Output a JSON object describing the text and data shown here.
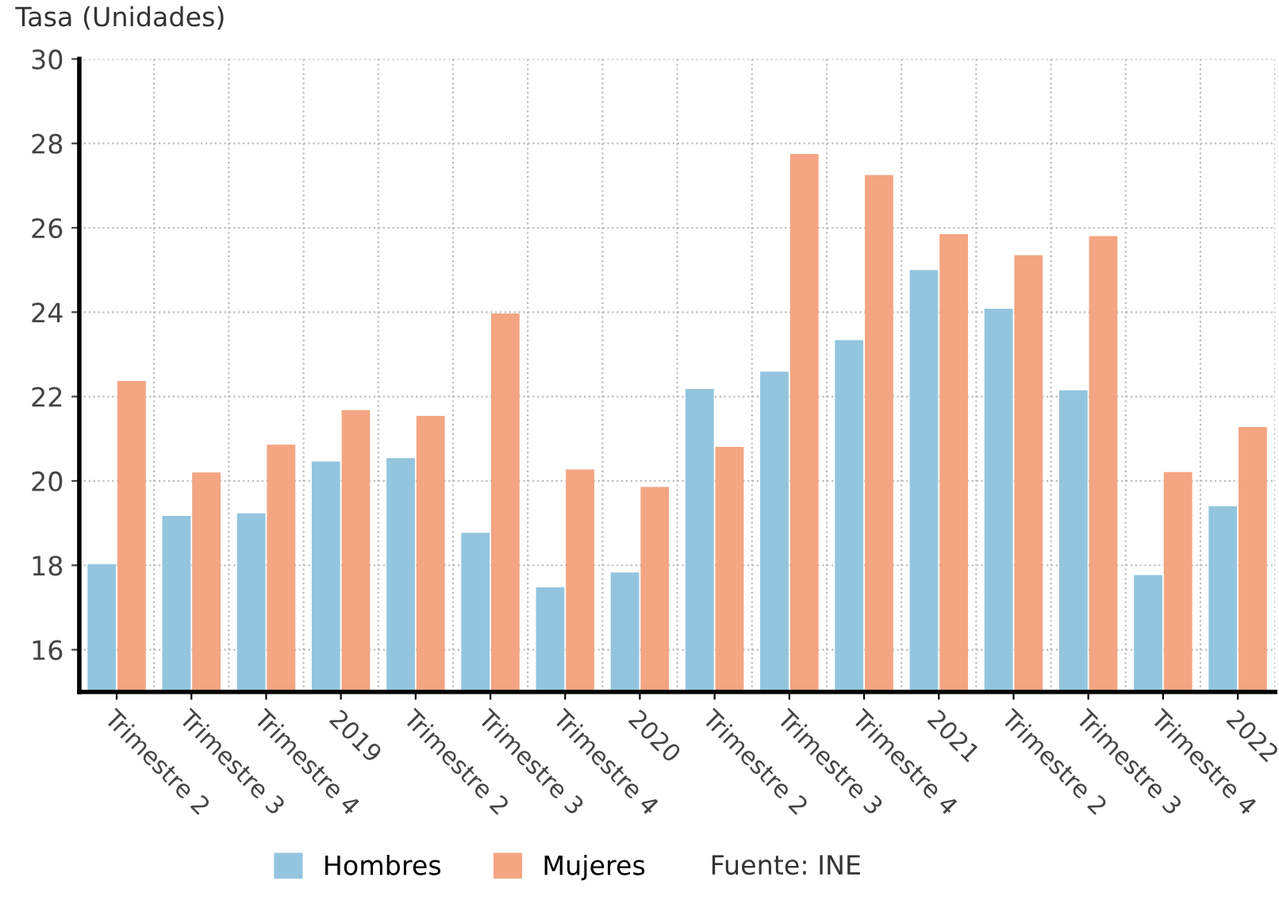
{
  "chart_data": {
    "type": "bar",
    "ylabel": "Tasa (Unidades)",
    "categories": [
      "Trimestre 2",
      "Trimestre 3",
      "Trimestre 4",
      "2019",
      "Trimestre 2",
      "Trimestre 3",
      "Trimestre 4",
      "2020",
      "Trimestre 2",
      "Trimestre 3",
      "Trimestre 4",
      "2021",
      "Trimestre 2",
      "Trimestre 3",
      "Trimestre 4",
      "2022"
    ],
    "series": [
      {
        "name": "Hombres",
        "color": "#93c5de",
        "values": [
          18.03,
          19.17,
          19.23,
          20.46,
          20.54,
          18.77,
          17.48,
          17.83,
          22.18,
          22.59,
          23.34,
          25.0,
          24.08,
          22.15,
          17.77,
          19.4
        ]
      },
      {
        "name": "Mujeres",
        "color": "#f4a582",
        "values": [
          22.37,
          20.2,
          20.86,
          21.68,
          21.54,
          23.97,
          20.27,
          19.86,
          20.81,
          27.75,
          27.25,
          25.85,
          25.35,
          25.8,
          20.21,
          21.28
        ]
      }
    ],
    "ylim": [
      15,
      30
    ],
    "yticks": [
      16,
      18,
      20,
      22,
      24,
      26,
      28,
      30
    ],
    "grid": true,
    "legend": "bottom",
    "annotations": [
      "Fuente: INE"
    ]
  }
}
